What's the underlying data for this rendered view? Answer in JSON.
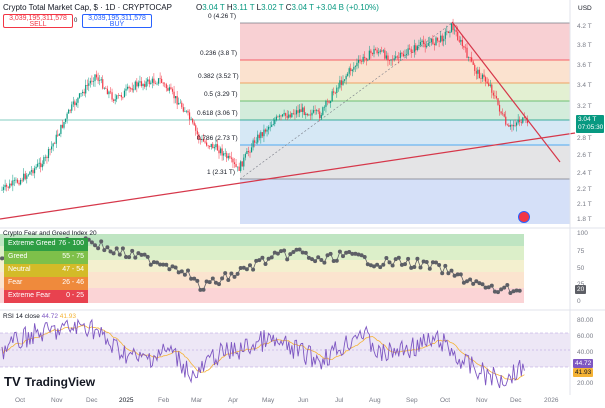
{
  "header": {
    "title": "Crypto Total Market Cap, $ · 1D · CRYPTOCAP",
    "open_label": "O",
    "open": "3.04 T",
    "high_label": "H",
    "high": "3.11 T",
    "low_label": "L",
    "low": "3.02 T",
    "close_label": "C",
    "close": "3.04 T",
    "change": "+3.04 B (+0.10%)",
    "sell_price": "3,039,195,311,578",
    "sell_label": "SELL",
    "buy_price": "3,039,195,311,578",
    "buy_label": "BUY",
    "spread": "0",
    "currency": "USD"
  },
  "fib_levels": [
    {
      "label": "0 (4.26 T)"
    },
    {
      "label": "0.236 (3.8 T)"
    },
    {
      "label": "0.382 (3.52 T)"
    },
    {
      "label": "0.5 (3.29 T)"
    },
    {
      "label": "0.618 (3.06 T)"
    },
    {
      "label": "0.786 (2.73 T)"
    },
    {
      "label": "1 (2.31 T)"
    }
  ],
  "price_axis": [
    "4.2 T",
    "3.8 T",
    "3.6 T",
    "3.4 T",
    "3.2 T",
    "2.8 T",
    "2.6 T",
    "2.4 T",
    "2.2 T",
    "2.1 T",
    "1.8 T"
  ],
  "last_price": {
    "value": "3.04 T",
    "countdown": "07:05:30"
  },
  "fear_greed": {
    "title": "Crypto Fear and Greed Index",
    "value_label": "20",
    "axis": [
      "100",
      "75",
      "50",
      "25",
      "0"
    ],
    "current_tag": "20",
    "legend": [
      {
        "name": "Extreme Greed",
        "range": "76 - 100",
        "color": "#2e9e44"
      },
      {
        "name": "Greed",
        "range": "55 - 75",
        "color": "#7ec04a"
      },
      {
        "name": "Neutral",
        "range": "47 - 54",
        "color": "#d3bb28"
      },
      {
        "name": "Fear",
        "range": "26 - 46",
        "color": "#ef8a3c"
      },
      {
        "name": "Extreme Fear",
        "range": "0 - 25",
        "color": "#e8424f"
      }
    ]
  },
  "rsi": {
    "title": "RSI 14 close",
    "value": "44.72",
    "ma": "41.93",
    "axis": [
      "80.00",
      "60.00",
      "40.00",
      "20.00"
    ],
    "tag_value": "44.72",
    "tag_ma": "41.93"
  },
  "time_axis": [
    "Oct",
    "Nov",
    "Dec",
    "2025",
    "Feb",
    "Mar",
    "Apr",
    "May",
    "Jun",
    "Jul",
    "Aug",
    "Sep",
    "Oct",
    "Nov",
    "Dec",
    "2026"
  ],
  "branding": {
    "name": "TradingView",
    "mark": "TV"
  },
  "colors": {
    "up": "#089981",
    "down": "#f23645",
    "trend": "#d6374a",
    "rsi": "#7e57c2",
    "fg": "#5d5f66"
  }
}
